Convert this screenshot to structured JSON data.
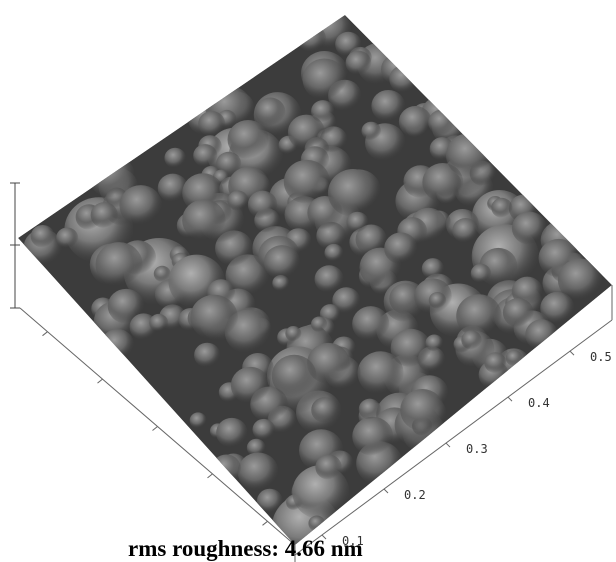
{
  "axis_labels": [
    "0.1",
    "0.2",
    "0.3",
    "0.4",
    "0.5"
  ],
  "caption": "rms roughness: 4.66 nm"
}
